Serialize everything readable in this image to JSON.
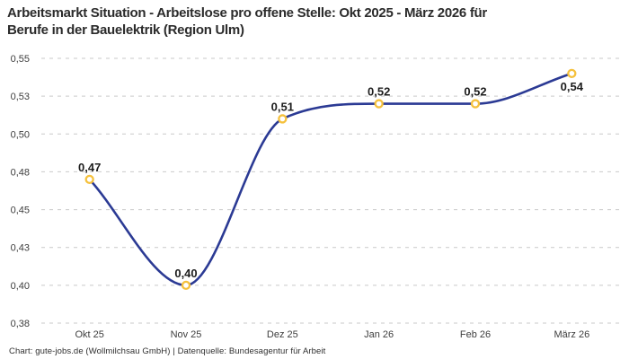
{
  "header": {
    "title_lines": [
      "Arbeitsmarkt Situation - Arbeitslose pro offene Stelle: Okt 2025 - März 2026 für",
      "Berufe in der Bauelektrik (Region Ulm)"
    ]
  },
  "chart_data": {
    "type": "line",
    "title": "Arbeitsmarkt Situation - Arbeitslose pro offene Stelle: Okt 2025 - März 2026 für Berufe in der Bauelektrik (Region Ulm)",
    "categories": [
      "Okt 25",
      "Nov 25",
      "Dez 25",
      "Jan 26",
      "Feb 26",
      "März 26"
    ],
    "values": [
      0.47,
      0.4,
      0.51,
      0.52,
      0.52,
      0.54
    ],
    "point_labels": [
      "0,47",
      "0,40",
      "0,51",
      "0,52",
      "0,52",
      "0,54"
    ],
    "label_positions": [
      "above",
      "above",
      "above",
      "above",
      "above",
      "below"
    ],
    "xlabel": "",
    "ylabel": "",
    "ylim": [
      0.375,
      0.55
    ],
    "yticks": [
      {
        "value": 0.55,
        "label": "0,55"
      },
      {
        "value": 0.525,
        "label": "0,53"
      },
      {
        "value": 0.5,
        "label": "0,50"
      },
      {
        "value": 0.475,
        "label": "0,48"
      },
      {
        "value": 0.45,
        "label": "0,45"
      },
      {
        "value": 0.425,
        "label": "0,43"
      },
      {
        "value": 0.4,
        "label": "0,40"
      },
      {
        "value": 0.375,
        "label": "0,38"
      }
    ],
    "grid": "horizontal-dashed",
    "legend": "none",
    "line_color": "#2b3a94",
    "marker_color": "#f5c13d",
    "marker_fill": "#ffffff",
    "grid_color": "#c9c9c9"
  },
  "footer": {
    "credit": "Chart: gute-jobs.de (Wollmilchsau GmbH) | Datenquelle: Bundesagentur für Arbeit"
  }
}
